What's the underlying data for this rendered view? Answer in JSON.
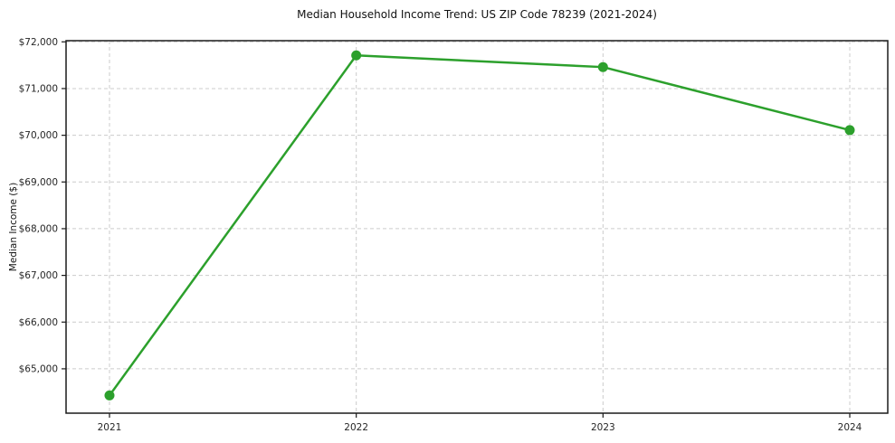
{
  "chart": {
    "title": "Median Household Income Trend: US ZIP Code 78239 (2021-2024)",
    "ylabel": "Median Income ($)"
  },
  "chart_data": {
    "type": "line",
    "title": "Median Household Income Trend: US ZIP Code 78239 (2021-2024)",
    "xlabel": "",
    "ylabel": "Median Income ($)",
    "x": [
      2021,
      2022,
      2023,
      2024
    ],
    "values": [
      64430,
      71710,
      71460,
      70110
    ],
    "xticks": [
      2021,
      2022,
      2023,
      2024
    ],
    "xtick_labels": [
      "2021",
      "2022",
      "2023",
      "2024"
    ],
    "yticks": [
      65000,
      66000,
      67000,
      68000,
      69000,
      70000,
      71000,
      72000
    ],
    "ytick_labels": [
      "$65,000",
      "$66,000",
      "$67,000",
      "$68,000",
      "$69,000",
      "$70,000",
      "$71,000",
      "$72,000"
    ],
    "xlim": [
      2020.824,
      2024.154
    ],
    "ylim": [
      64050,
      72025
    ],
    "grid": true,
    "grid_style": "dashed",
    "legend": false,
    "line_color": "#2ca02c",
    "marker": "circle",
    "marker_radius": 5.5,
    "line_width": 2.5,
    "grid_color": "#cccccc",
    "spine_color": "#1a1a1a",
    "tick_text_color": "#262626",
    "background_color": "#ffffff"
  }
}
